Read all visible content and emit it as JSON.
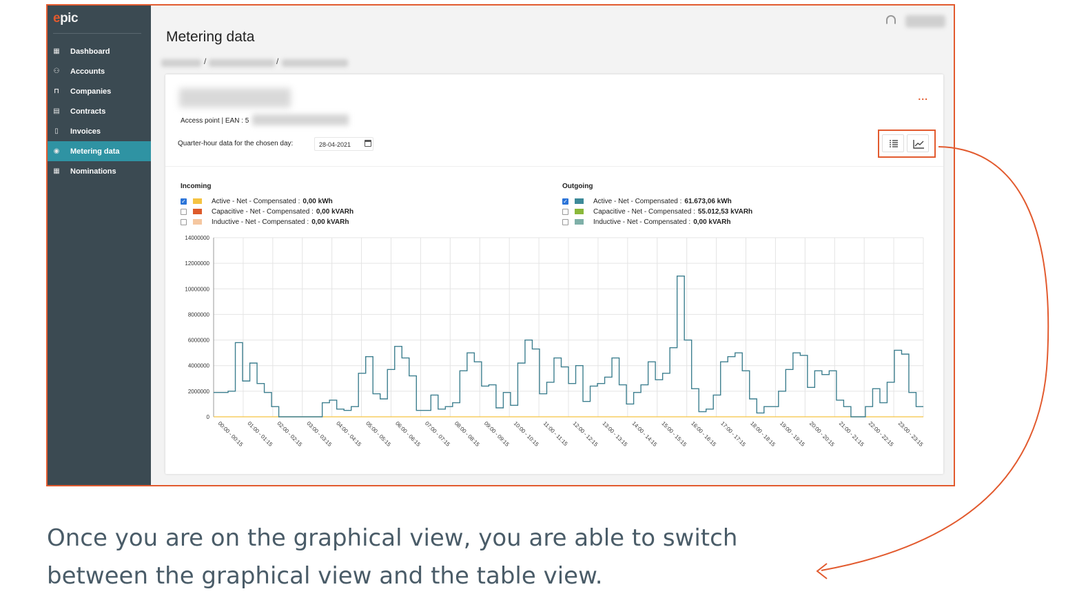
{
  "sidebar": {
    "logo": "epic",
    "items": [
      {
        "label": "Dashboard",
        "icon": "grid-icon",
        "active": false
      },
      {
        "label": "Accounts",
        "icon": "users-icon",
        "active": false
      },
      {
        "label": "Companies",
        "icon": "factory-icon",
        "active": false
      },
      {
        "label": "Contracts",
        "icon": "contract-icon",
        "active": false
      },
      {
        "label": "Invoices",
        "icon": "invoice-icon",
        "active": false
      },
      {
        "label": "Metering data",
        "icon": "gauge-icon",
        "active": true
      },
      {
        "label": "Nominations",
        "icon": "calendar-icon",
        "active": false
      }
    ]
  },
  "header": {
    "title": "Metering data",
    "breadcrumb_separator": "/"
  },
  "card": {
    "menu_label": "...",
    "ean_label": "Access point | EAN :",
    "ean_partial": "5",
    "quarter_hour_label": "Quarter-hour data for the chosen day:",
    "date_value": "28-04-2021"
  },
  "legend": {
    "incoming": {
      "title": "Incoming",
      "items": [
        {
          "label": "Active - Net - Compensated :",
          "value": "0,00 kWh",
          "checked": true,
          "color": "#f5c342"
        },
        {
          "label": "Capacitive - Net - Compensated :",
          "value": "0,00 kVARh",
          "checked": false,
          "color": "#dd5a2a"
        },
        {
          "label": "Inductive - Net - Compensated :",
          "value": "0,00 kVARh",
          "checked": false,
          "color": "#f5c7a0"
        }
      ]
    },
    "outgoing": {
      "title": "Outgoing",
      "items": [
        {
          "label": "Active - Net - Compensated :",
          "value": "61.673,06 kWh",
          "checked": true,
          "color": "#3d8a99"
        },
        {
          "label": "Capacitive - Net - Compensated :",
          "value": "55.012,53 kVARh",
          "checked": false,
          "color": "#8ab83a"
        },
        {
          "label": "Inductive - Net - Compensated :",
          "value": "0,00 kVARh",
          "checked": false,
          "color": "#7fb0a8"
        }
      ]
    }
  },
  "chart_data": {
    "type": "line",
    "step": true,
    "ylim": [
      0,
      14000000
    ],
    "yticks": [
      0,
      2000000,
      4000000,
      6000000,
      8000000,
      10000000,
      12000000,
      14000000
    ],
    "grid": true,
    "legend_placement": "top",
    "xlabels": [
      "00:00 - 00:15",
      "01:00 - 01:15",
      "02:00 - 02:15",
      "03:00 - 03:15",
      "04:00 - 04:15",
      "05:00 - 05:15",
      "06:00 - 06:15",
      "07:00 - 07:15",
      "08:00 - 08:15",
      "09:00 - 09:15",
      "10:00 - 10:15",
      "11:00 - 11:15",
      "12:00 - 12:15",
      "13:00 - 13:15",
      "14:00 - 14:15",
      "15:00 - 15:15",
      "16:00 - 16:15",
      "17:00 - 17:15",
      "18:00 - 18:15",
      "19:00 - 19:15",
      "20:00 - 20:15",
      "21:00 - 21:15",
      "22:00 - 22:15",
      "23:00 - 23:15"
    ],
    "series": [
      {
        "name": "Outgoing Active - Net - Compensated",
        "color": "#3d7f8f",
        "values": [
          1900000,
          1900000,
          2000000,
          5800000,
          2800000,
          4200000,
          2600000,
          1900000,
          800000,
          0,
          0,
          0,
          0,
          0,
          0,
          1100000,
          1300000,
          600000,
          500000,
          800000,
          3400000,
          4700000,
          1800000,
          1400000,
          3700000,
          5500000,
          4600000,
          3200000,
          500000,
          500000,
          1700000,
          600000,
          800000,
          1100000,
          3600000,
          5000000,
          4300000,
          2400000,
          2500000,
          700000,
          1900000,
          900000,
          4200000,
          6000000,
          5300000,
          1800000,
          2700000,
          4600000,
          3900000,
          2600000,
          4000000,
          1200000,
          2400000,
          2600000,
          3100000,
          4600000,
          2500000,
          1000000,
          1900000,
          2500000,
          4300000,
          2900000,
          3400000,
          5400000,
          11000000,
          6000000,
          2200000,
          400000,
          600000,
          1700000,
          4300000,
          4700000,
          5000000,
          3600000,
          1400000,
          300000,
          800000,
          800000,
          2000000,
          3700000,
          5000000,
          4800000,
          2300000,
          3600000,
          3300000,
          3600000,
          1300000,
          800000,
          0,
          0,
          800000,
          2200000,
          1100000,
          2700000,
          5200000,
          4900000,
          1900000,
          800000
        ]
      },
      {
        "name": "Incoming Active - Net - Compensated",
        "color": "#f5c342",
        "values": [
          0
        ]
      }
    ]
  },
  "caption": "Once you are on the graphical view, you are able to switch between the graphical view and the table view."
}
